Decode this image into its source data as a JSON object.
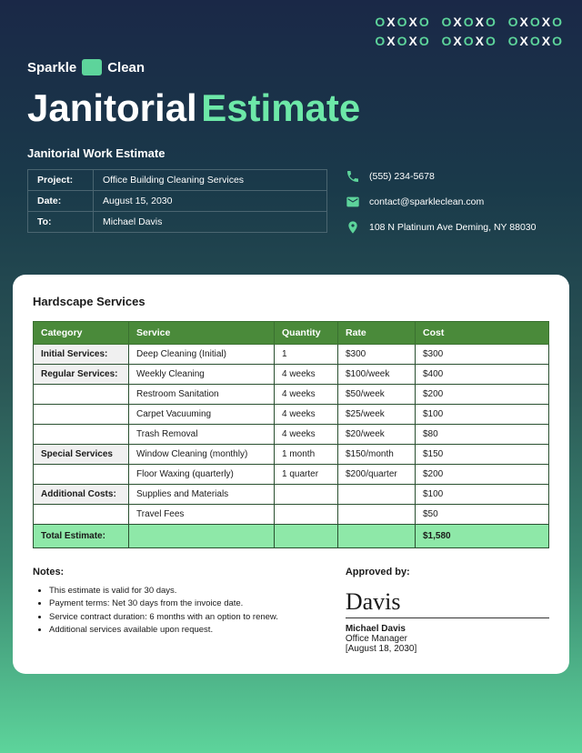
{
  "decoration": {
    "line1": "OXOXO  OXOXO  OXOXO",
    "line2": "OXOXO  OXOXO  OXOXO"
  },
  "logo": {
    "part1": "Sparkle",
    "part2": "Clean"
  },
  "title": {
    "main": "Janitorial",
    "accent": "Estimate"
  },
  "subtitle": "Janitorial Work Estimate",
  "meta": {
    "projectLabel": "Project:",
    "projectValue": "Office Building Cleaning Services",
    "dateLabel": "Date:",
    "dateValue": "August 15, 2030",
    "toLabel": "To:",
    "toValue": "Michael Davis"
  },
  "contact": {
    "phone": "(555) 234-5678",
    "email": "contact@sparkleclean.com",
    "address": "108 N Platinum Ave Deming, NY 88030"
  },
  "services": {
    "title": "Hardscape Services",
    "headers": {
      "category": "Category",
      "service": "Service",
      "quantity": "Quantity",
      "rate": "Rate",
      "cost": "Cost"
    },
    "rows": [
      {
        "cat": "Initial Services:",
        "svc": "Deep Cleaning (Initial)",
        "qty": "1",
        "rate": "$300",
        "cost": "$300"
      },
      {
        "cat": "Regular Services:",
        "svc": "Weekly Cleaning",
        "qty": "4 weeks",
        "rate": "$100/week",
        "cost": "$400"
      },
      {
        "cat": "",
        "svc": "Restroom Sanitation",
        "qty": "4 weeks",
        "rate": "$50/week",
        "cost": "$200"
      },
      {
        "cat": "",
        "svc": "Carpet Vacuuming",
        "qty": "4 weeks",
        "rate": "$25/week",
        "cost": "$100"
      },
      {
        "cat": "",
        "svc": "Trash Removal",
        "qty": "4 weeks",
        "rate": "$20/week",
        "cost": "$80"
      },
      {
        "cat": "Special Services",
        "svc": "Window Cleaning (monthly)",
        "qty": "1 month",
        "rate": "$150/month",
        "cost": "$150"
      },
      {
        "cat": "",
        "svc": "Floor Waxing (quarterly)",
        "qty": "1 quarter",
        "rate": "$200/quarter",
        "cost": "$200"
      },
      {
        "cat": "Additional Costs:",
        "svc": "Supplies and Materials",
        "qty": "",
        "rate": "",
        "cost": "$100"
      },
      {
        "cat": "",
        "svc": "Travel Fees",
        "qty": "",
        "rate": "",
        "cost": "$50"
      }
    ],
    "totalLabel": "Total Estimate:",
    "totalValue": "$1,580"
  },
  "notes": {
    "title": "Notes:",
    "items": [
      "This estimate is valid for 30 days.",
      "Payment terms: Net 30 days from the invoice date.",
      "Service contract duration: 6 months with an option to renew.",
      "Additional services available upon request."
    ]
  },
  "approved": {
    "title": "Approved by:",
    "signature": "Davis",
    "name": "Michael Davis",
    "role": "Office Manager",
    "date": "[August 18, 2030]"
  },
  "colors": {
    "accent": "#5dd49b",
    "tableHeader": "#4a8a3a",
    "totalRow": "#8ee8a8"
  }
}
